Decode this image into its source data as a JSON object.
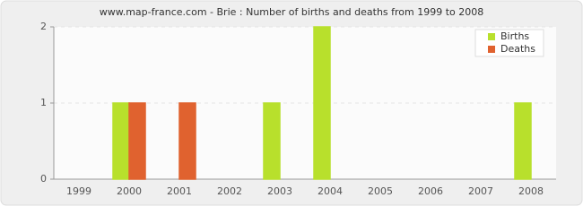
{
  "chart_data": {
    "type": "bar",
    "title": "www.map-france.com - Brie : Number of births and deaths from 1999 to 2008",
    "categories": [
      "1999",
      "2000",
      "2001",
      "2002",
      "2003",
      "2004",
      "2005",
      "2006",
      "2007",
      "2008"
    ],
    "series": [
      {
        "name": "Births",
        "color": "#b8e02c",
        "values": [
          0,
          1,
          0,
          0,
          1,
          2,
          0,
          0,
          0,
          1
        ]
      },
      {
        "name": "Deaths",
        "color": "#e0622f",
        "values": [
          0,
          1,
          1,
          0,
          0,
          0,
          0,
          0,
          0,
          0
        ]
      }
    ],
    "ylim": [
      0,
      2
    ],
    "yticks": [
      0,
      1,
      2
    ],
    "grid": true,
    "legend": "top-right"
  }
}
